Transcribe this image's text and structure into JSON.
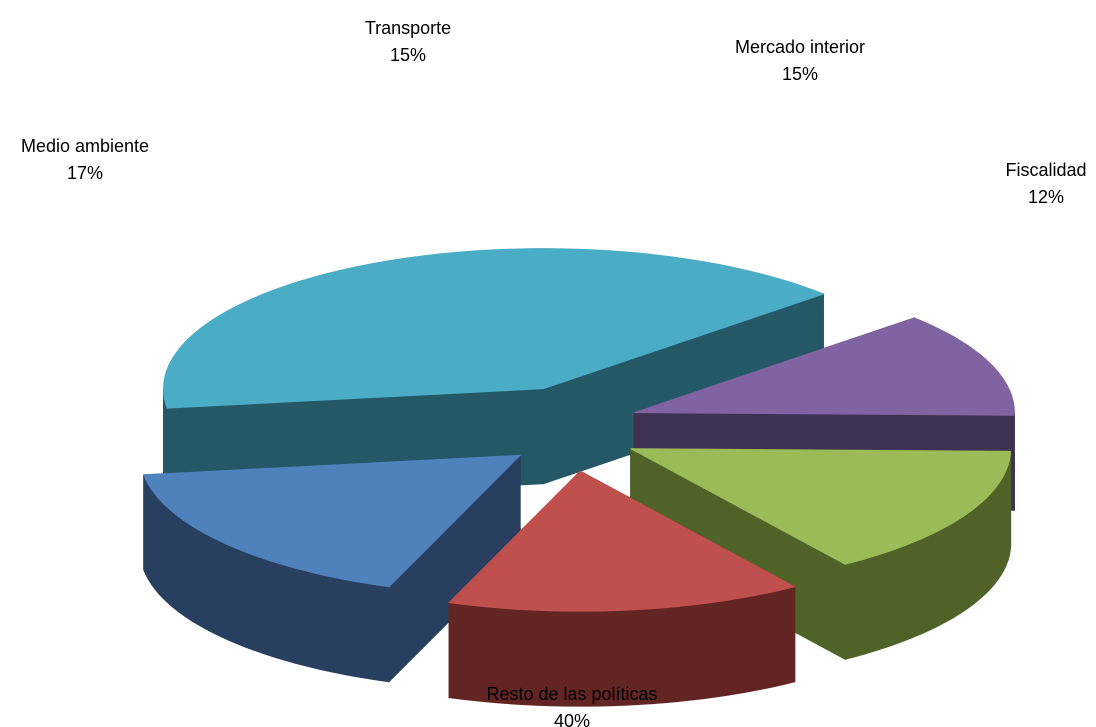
{
  "chart_data": {
    "type": "pie",
    "style": "3d-exploded",
    "title": "",
    "legend": "none",
    "data_labels": "category name and percentage",
    "slices": [
      {
        "label": "Resto de las políticas",
        "value": 40,
        "percent_label": "40%",
        "top_color": "#4bacc6",
        "side_color": "#255867"
      },
      {
        "label": "Fiscalidad",
        "value": 12,
        "percent_label": "12%",
        "top_color": "#8064a2",
        "side_color": "#3f3151"
      },
      {
        "label": "Mercado interior",
        "value": 15,
        "percent_label": "15%",
        "top_color": "#9bbb59",
        "side_color": "#4f6228"
      },
      {
        "label": "Transporte",
        "value": 15,
        "percent_label": "15%",
        "top_color": "#c0504d",
        "side_color": "#632523"
      },
      {
        "label": "Medio ambiente",
        "value": 17,
        "percent_label": "17%",
        "top_color": "#4f81bd",
        "side_color": "#283f5f"
      }
    ]
  }
}
